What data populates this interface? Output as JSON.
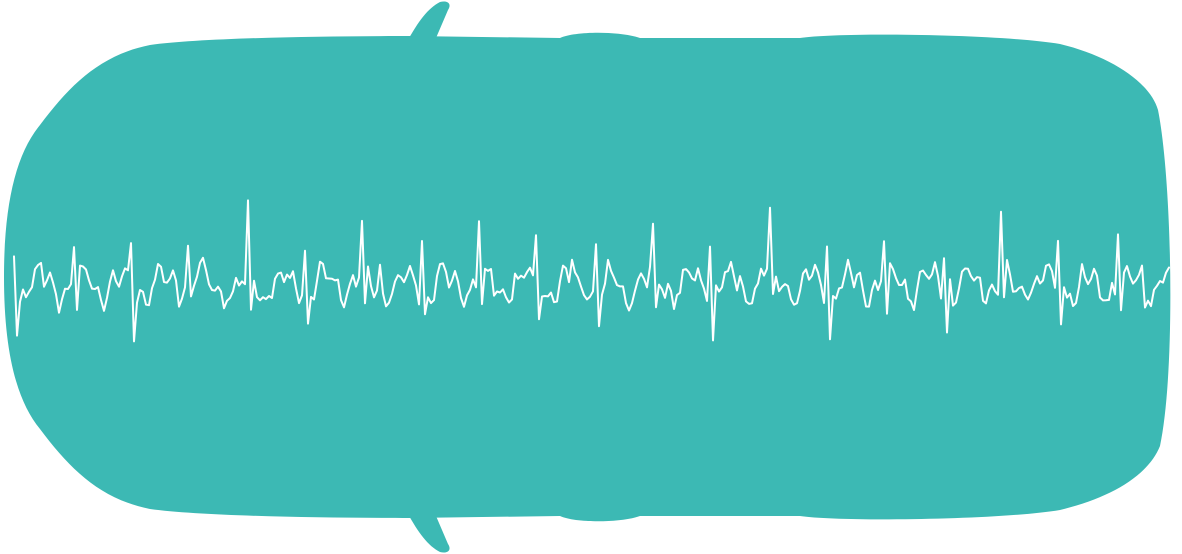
{
  "graphic": {
    "subject": "car-top-view-silhouette-with-waveform",
    "body_color": "#3cb9b4",
    "waveform_color": "#ffffff",
    "background_color": "#ffffff"
  }
}
